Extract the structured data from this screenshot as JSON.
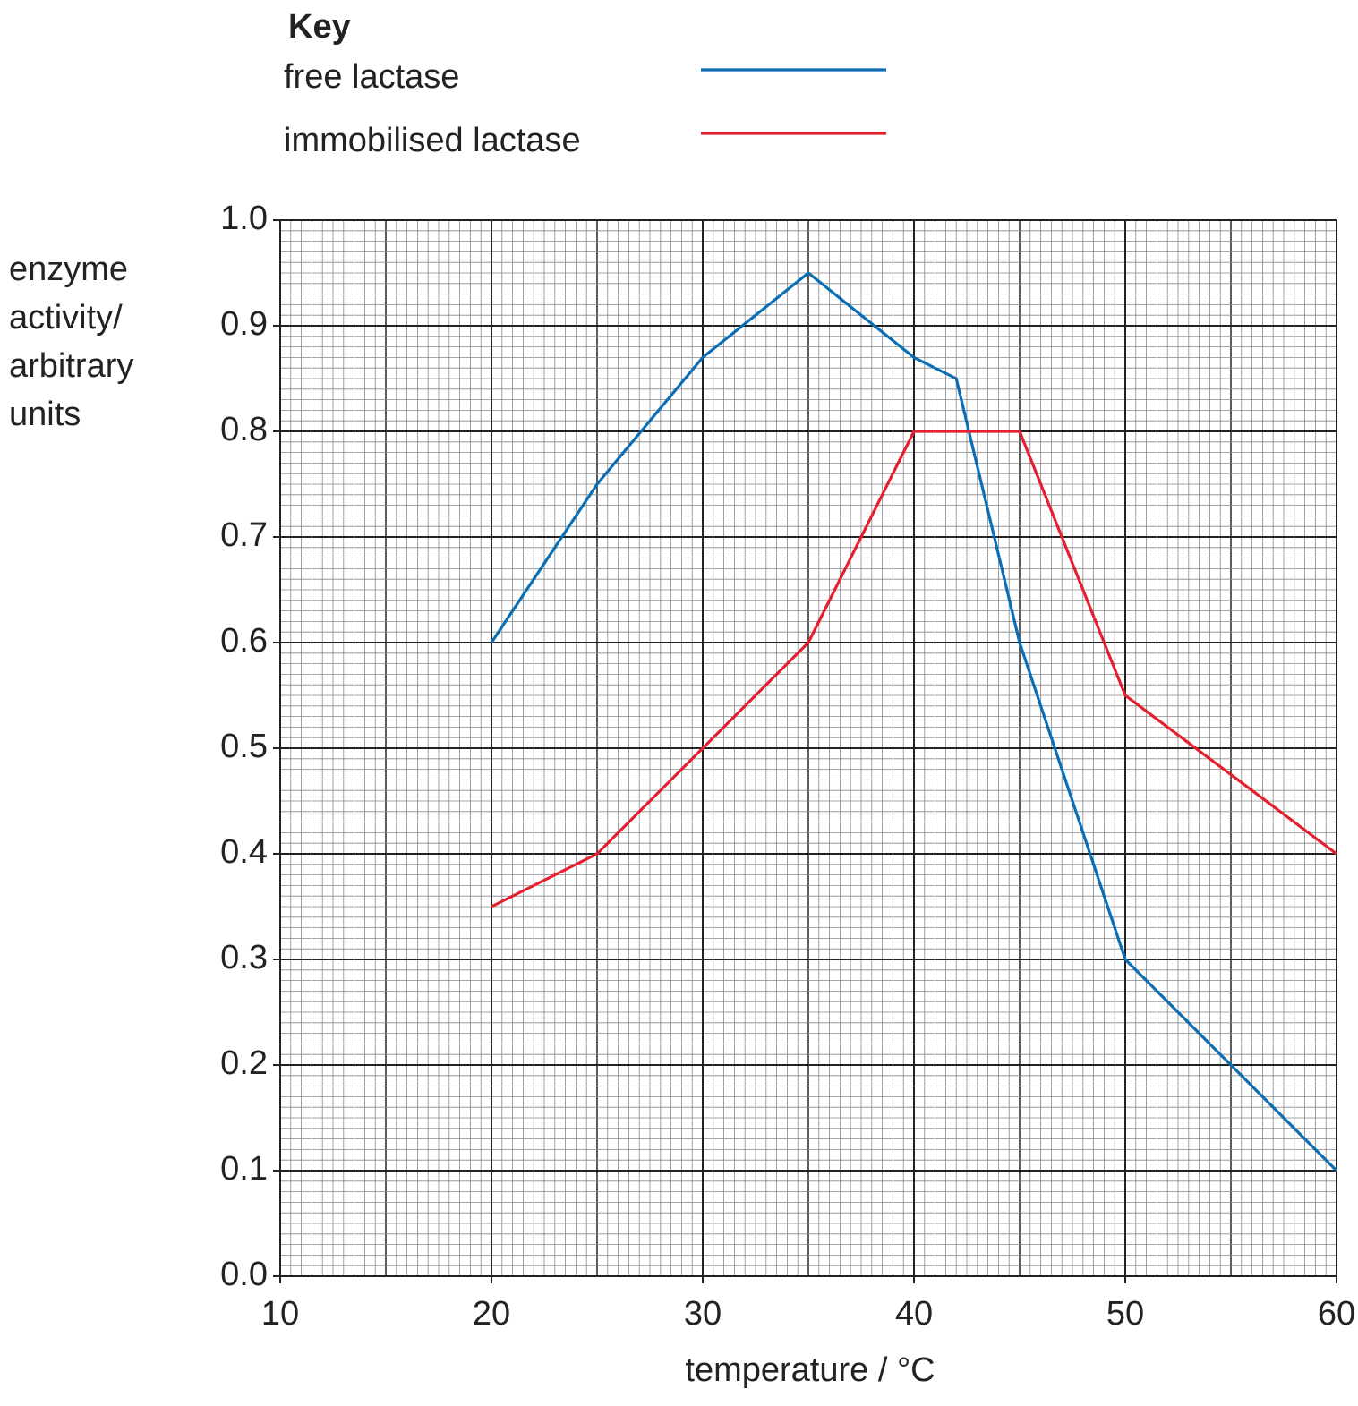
{
  "chart_data": {
    "type": "line",
    "legend_title": "Key",
    "xlabel": "temperature / °C",
    "ylabel": "enzyme activity/ arbitrary units",
    "xlim": [
      10,
      60
    ],
    "xticks": [
      10,
      20,
      30,
      40,
      50,
      60
    ],
    "ylim": [
      0,
      1
    ],
    "yticks": [
      {
        "value": 0,
        "label": "0.0"
      },
      0.1,
      0.2,
      0.3,
      0.4,
      0.5,
      0.6,
      0.7,
      0.8,
      0.9,
      {
        "value": 1,
        "label": "1.0"
      }
    ],
    "grid": true,
    "series": [
      {
        "name": "free lactase",
        "color": "#0b6eb5",
        "x": [
          20,
          25,
          30,
          35,
          40,
          42,
          45,
          50,
          60
        ],
        "values": [
          0.6,
          0.75,
          0.87,
          0.95,
          0.87,
          0.85,
          0.6,
          0.3,
          0.1
        ]
      },
      {
        "name": "immobilised lactase",
        "color": "#e3202f",
        "x": [
          20,
          25,
          30,
          35,
          40,
          45,
          50,
          60
        ],
        "values": [
          0.35,
          0.4,
          0.5,
          0.6,
          0.8,
          0.8,
          0.55,
          0.4
        ]
      }
    ]
  }
}
